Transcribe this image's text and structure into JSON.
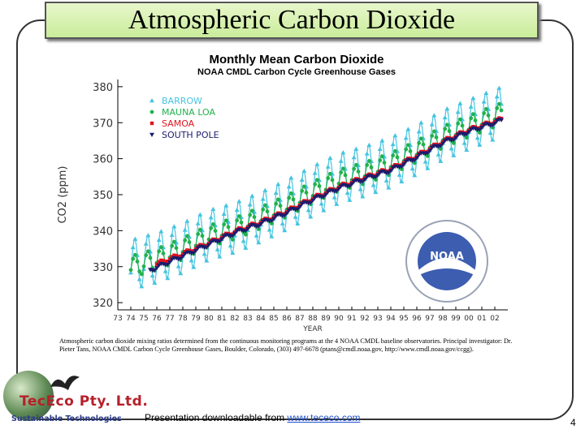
{
  "slide": {
    "title": "Atmospheric Carbon Dioxide",
    "footer_prefix": "Presentation downloadable from ",
    "footer_link": "www.tececo.com",
    "page_number": "4"
  },
  "logo": {
    "company": "TecEco Pty. Ltd.",
    "tagline": "Sustainable Technologies"
  },
  "chart_data": {
    "type": "line",
    "title": "Monthly Mean Carbon Dioxide",
    "subtitle": "NOAA CMDL Carbon Cycle Greenhouse Gases",
    "xlabel": "YEAR",
    "ylabel": "CO2 (ppm)",
    "xlim": [
      1973,
      2003
    ],
    "ylim": [
      318,
      382
    ],
    "yticks": [
      320,
      330,
      340,
      350,
      360,
      370,
      380
    ],
    "xticklabels": [
      "73",
      "74",
      "75",
      "76",
      "77",
      "78",
      "79",
      "80",
      "81",
      "82",
      "83",
      "84",
      "85",
      "86",
      "87",
      "88",
      "89",
      "90",
      "91",
      "92",
      "93",
      "94",
      "95",
      "96",
      "97",
      "98",
      "99",
      "00",
      "01",
      "02"
    ],
    "legend_position": "top-left",
    "grid": false,
    "series": [
      {
        "name": "BARROW",
        "color": "#45c4e0",
        "marker": "triangle",
        "x": [
          1974,
          1976,
          1978,
          1980,
          1982,
          1984,
          1986,
          1988,
          1990,
          1992,
          1994,
          1996,
          1998,
          2000,
          2002.5
        ],
        "mean": [
          330.5,
          332.5,
          335.2,
          338.8,
          340.8,
          343.8,
          347.2,
          351.0,
          354.5,
          356.5,
          359.0,
          362.5,
          366.5,
          369.5,
          373.0
        ],
        "amplitude": 7.0
      },
      {
        "name": "MAUNA LOA",
        "color": "#22b14c",
        "marker": "circle",
        "x": [
          1974,
          1976,
          1978,
          1980,
          1982,
          1984,
          1986,
          1988,
          1990,
          1992,
          1994,
          1996,
          1998,
          2000,
          2002.5
        ],
        "mean": [
          330.0,
          332.0,
          335.0,
          338.5,
          340.6,
          343.6,
          346.8,
          350.6,
          354.0,
          356.0,
          358.6,
          362.0,
          366.0,
          369.0,
          372.5
        ],
        "amplitude": 3.0
      },
      {
        "name": "SAMOA",
        "color": "#e0141e",
        "marker": "square",
        "x": [
          1976,
          1978,
          1980,
          1982,
          1984,
          1986,
          1988,
          1990,
          1992,
          1994,
          1996,
          1998,
          2000,
          2002.5
        ],
        "mean": [
          330.8,
          333.6,
          336.6,
          339.8,
          342.4,
          345.4,
          349.0,
          352.2,
          354.8,
          357.2,
          360.8,
          364.8,
          368.0,
          371.0
        ],
        "amplitude": 0.5
      },
      {
        "name": "SOUTH POLE",
        "color": "#1c1c6e",
        "marker": "triangle-down",
        "x": [
          1975.5,
          1978,
          1980,
          1982,
          1984,
          1986,
          1988,
          1990,
          1992,
          1994,
          1996,
          1998,
          2000,
          2002.5
        ],
        "mean": [
          329.0,
          333.0,
          336.2,
          339.4,
          342.0,
          345.0,
          348.6,
          351.8,
          354.4,
          356.8,
          360.4,
          364.4,
          367.6,
          370.6
        ],
        "amplitude": 0.5
      }
    ],
    "caption": "Atmospheric carbon dioxide mixing ratios determined from the continuous monitoring programs at the 4 NOAA CMDL baseline observatories. Principal investigator: Dr. Pieter Tans, NOAA CMDL Carbon Cycle Greenhouse Gases, Boulder, Colorado, (303) 497-6678 (ptans@cmdl.noaa.gov, http://www.cmdl.noaa.gov/ccgg).",
    "noaa_logo_text": "NOAA"
  }
}
